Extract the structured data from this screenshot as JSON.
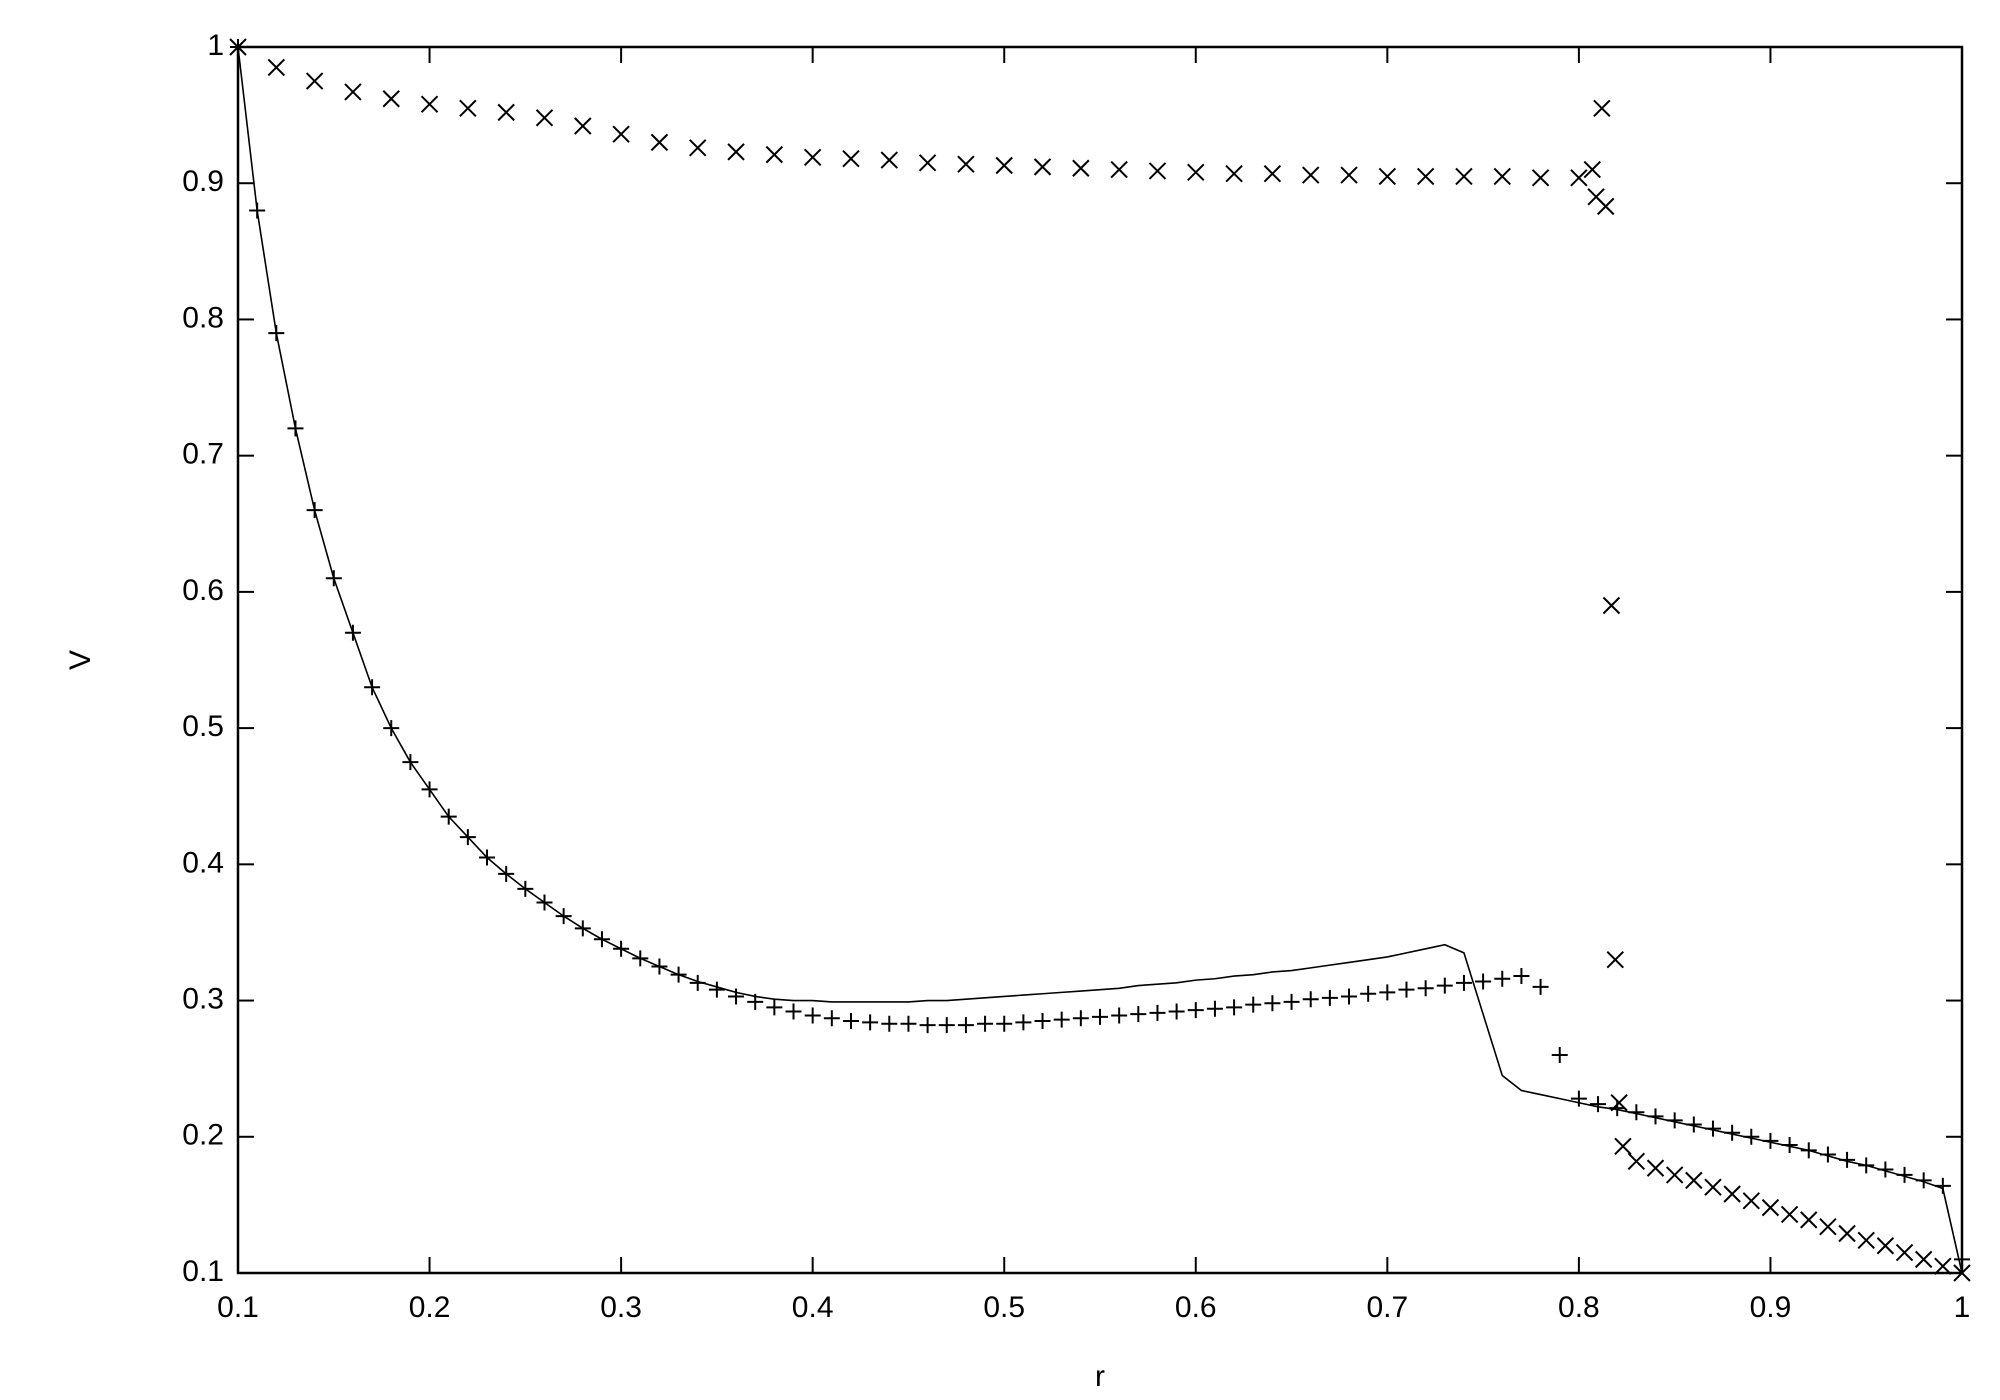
{
  "chart_data": {
    "type": "line",
    "xlabel": "r",
    "ylabel": "V",
    "xlim": [
      0.1,
      1
    ],
    "ylim": [
      0.1,
      1
    ],
    "xticks": [
      0.1,
      0.2,
      0.3,
      0.4,
      0.5,
      0.6,
      0.7,
      0.8,
      0.9,
      1
    ],
    "yticks": [
      0.1,
      0.2,
      0.3,
      0.4,
      0.5,
      0.6,
      0.7,
      0.8,
      0.9,
      1
    ],
    "mirror_ticks": true,
    "series": [
      {
        "style": "line",
        "color": "#000000",
        "x": [
          0.1,
          0.11,
          0.12,
          0.13,
          0.14,
          0.15,
          0.16,
          0.17,
          0.18,
          0.19,
          0.2,
          0.21,
          0.22,
          0.23,
          0.24,
          0.25,
          0.26,
          0.27,
          0.28,
          0.29,
          0.3,
          0.31,
          0.32,
          0.33,
          0.34,
          0.35,
          0.36,
          0.37,
          0.38,
          0.39,
          0.4,
          0.41,
          0.42,
          0.43,
          0.44,
          0.45,
          0.46,
          0.47,
          0.48,
          0.49,
          0.5,
          0.51,
          0.52,
          0.53,
          0.54,
          0.55,
          0.56,
          0.57,
          0.58,
          0.59,
          0.6,
          0.61,
          0.62,
          0.63,
          0.64,
          0.65,
          0.66,
          0.67,
          0.68,
          0.69,
          0.7,
          0.71,
          0.72,
          0.73,
          0.74,
          0.75,
          0.76,
          0.77,
          0.78,
          0.79,
          0.8,
          0.81,
          0.82,
          0.83,
          0.84,
          0.85,
          0.86,
          0.87,
          0.88,
          0.89,
          0.9,
          0.91,
          0.92,
          0.93,
          0.94,
          0.95,
          0.96,
          0.97,
          0.98,
          0.99,
          1
        ],
        "values": [
          1,
          0.88,
          0.79,
          0.72,
          0.66,
          0.61,
          0.57,
          0.53,
          0.5,
          0.475,
          0.455,
          0.435,
          0.42,
          0.405,
          0.393,
          0.382,
          0.372,
          0.362,
          0.353,
          0.345,
          0.338,
          0.331,
          0.325,
          0.319,
          0.314,
          0.31,
          0.306,
          0.303,
          0.301,
          0.3,
          0.3,
          0.299,
          0.299,
          0.299,
          0.299,
          0.299,
          0.3,
          0.3,
          0.301,
          0.302,
          0.303,
          0.304,
          0.305,
          0.306,
          0.307,
          0.308,
          0.309,
          0.311,
          0.312,
          0.313,
          0.315,
          0.316,
          0.318,
          0.319,
          0.321,
          0.322,
          0.324,
          0.326,
          0.328,
          0.33,
          0.332,
          0.335,
          0.338,
          0.341,
          0.335,
          0.29,
          0.245,
          0.234,
          0.231,
          0.228,
          0.225,
          0.222,
          0.22,
          0.217,
          0.214,
          0.211,
          0.208,
          0.205,
          0.202,
          0.199,
          0.196,
          0.193,
          0.19,
          0.186,
          0.182,
          0.179,
          0.175,
          0.171,
          0.167,
          0.162,
          0.1
        ]
      },
      {
        "style": "plus",
        "color": "#000000",
        "x": [
          0.1,
          0.11,
          0.12,
          0.13,
          0.14,
          0.15,
          0.16,
          0.17,
          0.18,
          0.19,
          0.2,
          0.21,
          0.22,
          0.23,
          0.24,
          0.25,
          0.26,
          0.27,
          0.28,
          0.29,
          0.3,
          0.31,
          0.32,
          0.33,
          0.34,
          0.35,
          0.36,
          0.37,
          0.38,
          0.39,
          0.4,
          0.41,
          0.42,
          0.43,
          0.44,
          0.45,
          0.46,
          0.47,
          0.48,
          0.49,
          0.5,
          0.51,
          0.52,
          0.53,
          0.54,
          0.55,
          0.56,
          0.57,
          0.58,
          0.59,
          0.6,
          0.61,
          0.62,
          0.63,
          0.64,
          0.65,
          0.66,
          0.67,
          0.68,
          0.69,
          0.7,
          0.71,
          0.72,
          0.73,
          0.74,
          0.75,
          0.76,
          0.77,
          0.78,
          0.79,
          0.8,
          0.81,
          0.82,
          0.83,
          0.84,
          0.85,
          0.86,
          0.87,
          0.88,
          0.89,
          0.9,
          0.91,
          0.92,
          0.93,
          0.94,
          0.95,
          0.96,
          0.97,
          0.98,
          0.99,
          1
        ],
        "values": [
          1,
          0.88,
          0.79,
          0.72,
          0.66,
          0.61,
          0.57,
          0.53,
          0.5,
          0.475,
          0.455,
          0.435,
          0.42,
          0.405,
          0.393,
          0.382,
          0.372,
          0.362,
          0.353,
          0.345,
          0.338,
          0.331,
          0.325,
          0.319,
          0.313,
          0.308,
          0.303,
          0.299,
          0.295,
          0.292,
          0.289,
          0.287,
          0.285,
          0.284,
          0.283,
          0.283,
          0.282,
          0.282,
          0.282,
          0.283,
          0.283,
          0.284,
          0.285,
          0.286,
          0.287,
          0.288,
          0.289,
          0.29,
          0.291,
          0.292,
          0.293,
          0.294,
          0.295,
          0.297,
          0.298,
          0.299,
          0.301,
          0.302,
          0.303,
          0.305,
          0.306,
          0.308,
          0.309,
          0.311,
          0.313,
          0.314,
          0.316,
          0.318,
          0.31,
          0.26,
          0.228,
          0.224,
          0.221,
          0.218,
          0.215,
          0.212,
          0.209,
          0.206,
          0.203,
          0.2,
          0.197,
          0.194,
          0.19,
          0.187,
          0.183,
          0.179,
          0.176,
          0.172,
          0.168,
          0.164,
          0.11
        ]
      },
      {
        "style": "cross",
        "color": "#000000",
        "x": [
          0.1,
          0.12,
          0.14,
          0.16,
          0.18,
          0.2,
          0.22,
          0.24,
          0.26,
          0.28,
          0.3,
          0.32,
          0.34,
          0.36,
          0.38,
          0.4,
          0.42,
          0.44,
          0.46,
          0.48,
          0.5,
          0.52,
          0.54,
          0.56,
          0.58,
          0.6,
          0.62,
          0.64,
          0.66,
          0.68,
          0.7,
          0.72,
          0.74,
          0.76,
          0.78,
          0.8,
          0.807,
          0.809,
          0.812,
          0.814,
          0.817,
          0.819,
          0.821,
          0.823,
          0.83,
          0.84,
          0.85,
          0.86,
          0.87,
          0.88,
          0.89,
          0.9,
          0.91,
          0.92,
          0.93,
          0.94,
          0.95,
          0.96,
          0.97,
          0.98,
          0.99,
          1
        ],
        "values": [
          1,
          0.985,
          0.975,
          0.967,
          0.962,
          0.958,
          0.955,
          0.952,
          0.948,
          0.942,
          0.936,
          0.93,
          0.926,
          0.923,
          0.921,
          0.919,
          0.918,
          0.917,
          0.915,
          0.914,
          0.913,
          0.912,
          0.911,
          0.91,
          0.909,
          0.908,
          0.907,
          0.907,
          0.906,
          0.906,
          0.905,
          0.905,
          0.905,
          0.905,
          0.904,
          0.904,
          0.91,
          0.89,
          0.955,
          0.883,
          0.59,
          0.33,
          0.225,
          0.193,
          0.182,
          0.177,
          0.172,
          0.168,
          0.163,
          0.158,
          0.153,
          0.148,
          0.143,
          0.139,
          0.134,
          0.129,
          0.124,
          0.12,
          0.115,
          0.11,
          0.105,
          0.1
        ]
      }
    ]
  }
}
